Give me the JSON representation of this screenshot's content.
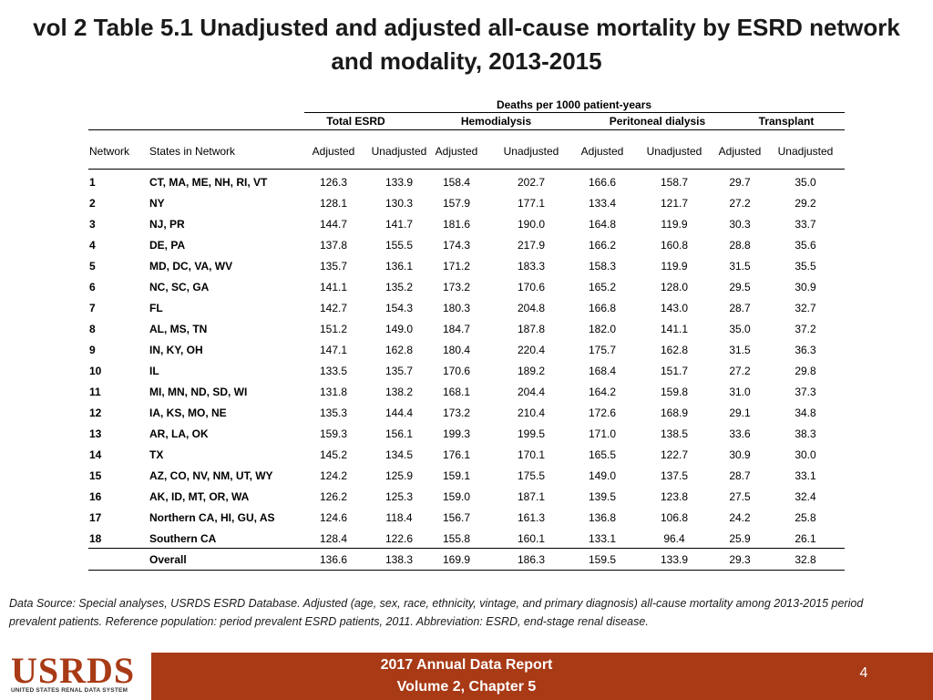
{
  "title": "vol 2 Table 5.1 Unadjusted and adjusted all-cause mortality by ESRD network and modality, 2013-2015",
  "table": {
    "super_header": "Deaths per 1000 patient-years",
    "groups": [
      "Total ESRD",
      "Hemodialysis",
      "Peritoneal dialysis",
      "Transplant"
    ],
    "columns": [
      "Network",
      "States in Network",
      "Adjusted",
      "Unadjusted",
      "Adjusted",
      "Unadjusted",
      "Adjusted",
      "Unadjusted",
      "Adjusted",
      "Unadjusted"
    ],
    "rows": [
      [
        "1",
        "CT, MA, ME, NH, RI, VT",
        "126.3",
        "133.9",
        "158.4",
        "202.7",
        "166.6",
        "158.7",
        "29.7",
        "35.0"
      ],
      [
        "2",
        "NY",
        "128.1",
        "130.3",
        "157.9",
        "177.1",
        "133.4",
        "121.7",
        "27.2",
        "29.2"
      ],
      [
        "3",
        "NJ, PR",
        "144.7",
        "141.7",
        "181.6",
        "190.0",
        "164.8",
        "119.9",
        "30.3",
        "33.7"
      ],
      [
        "4",
        "DE, PA",
        "137.8",
        "155.5",
        "174.3",
        "217.9",
        "166.2",
        "160.8",
        "28.8",
        "35.6"
      ],
      [
        "5",
        "MD, DC, VA, WV",
        "135.7",
        "136.1",
        "171.2",
        "183.3",
        "158.3",
        "119.9",
        "31.5",
        "35.5"
      ],
      [
        "6",
        "NC, SC, GA",
        "141.1",
        "135.2",
        "173.2",
        "170.6",
        "165.2",
        "128.0",
        "29.5",
        "30.9"
      ],
      [
        "7",
        "FL",
        "142.7",
        "154.3",
        "180.3",
        "204.8",
        "166.8",
        "143.0",
        "28.7",
        "32.7"
      ],
      [
        "8",
        "AL, MS, TN",
        "151.2",
        "149.0",
        "184.7",
        "187.8",
        "182.0",
        "141.1",
        "35.0",
        "37.2"
      ],
      [
        "9",
        "IN, KY, OH",
        "147.1",
        "162.8",
        "180.4",
        "220.4",
        "175.7",
        "162.8",
        "31.5",
        "36.3"
      ],
      [
        "10",
        "IL",
        "133.5",
        "135.7",
        "170.6",
        "189.2",
        "168.4",
        "151.7",
        "27.2",
        "29.8"
      ],
      [
        "11",
        "MI, MN, ND, SD, WI",
        "131.8",
        "138.2",
        "168.1",
        "204.4",
        "164.2",
        "159.8",
        "31.0",
        "37.3"
      ],
      [
        "12",
        "IA, KS, MO, NE",
        "135.3",
        "144.4",
        "173.2",
        "210.4",
        "172.6",
        "168.9",
        "29.1",
        "34.8"
      ],
      [
        "13",
        "AR, LA, OK",
        "159.3",
        "156.1",
        "199.3",
        "199.5",
        "171.0",
        "138.5",
        "33.6",
        "38.3"
      ],
      [
        "14",
        "TX",
        "145.2",
        "134.5",
        "176.1",
        "170.1",
        "165.5",
        "122.7",
        "30.9",
        "30.0"
      ],
      [
        "15",
        "AZ, CO, NV, NM, UT, WY",
        "124.2",
        "125.9",
        "159.1",
        "175.5",
        "149.0",
        "137.5",
        "28.7",
        "33.1"
      ],
      [
        "16",
        "AK, ID, MT, OR, WA",
        "126.2",
        "125.3",
        "159.0",
        "187.1",
        "139.5",
        "123.8",
        "27.5",
        "32.4"
      ],
      [
        "17",
        "Northern CA, HI, GU, AS",
        "124.6",
        "118.4",
        "156.7",
        "161.3",
        "136.8",
        "106.8",
        "24.2",
        "25.8"
      ],
      [
        "18",
        "Southern CA",
        "128.4",
        "122.6",
        "155.8",
        "160.1",
        "133.1",
        "96.4",
        "25.9",
        "26.1"
      ]
    ],
    "overall": [
      "",
      "Overall",
      "136.6",
      "138.3",
      "169.9",
      "186.3",
      "159.5",
      "133.9",
      "29.3",
      "32.8"
    ]
  },
  "source_note": "Data Source: Special analyses, USRDS ESRD Database. Adjusted (age, sex, race, ethnicity, vintage, and primary diagnosis) all-cause mortality among 2013-2015 period prevalent patients. Reference population: period prevalent ESRD patients, 2011. Abbreviation: ESRD, end-stage renal disease.",
  "footer": {
    "logo_text": "USRDS",
    "logo_subtitle": "UNITED STATES RENAL DATA SYSTEM",
    "report_line1": "2017 Annual Data Report",
    "report_line2": "Volume 2, Chapter 5",
    "page_number": "4",
    "bar_color": "#a83a16"
  }
}
